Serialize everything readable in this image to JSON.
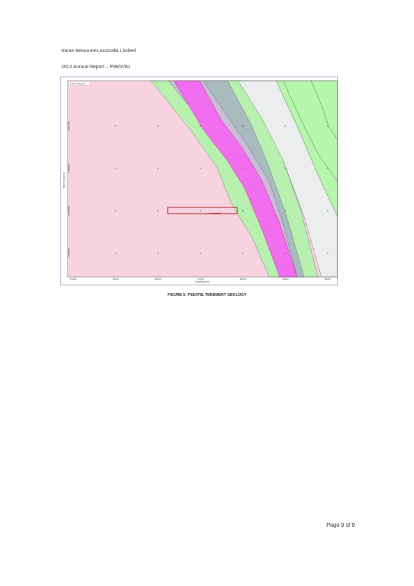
{
  "header": {
    "company": "Stone Resources Australia Limited",
    "report": "2012 Annual Report – P38/3781"
  },
  "figure": {
    "caption": "FIGURE 5:  P38/3781 TENEMENT GEOLOGY",
    "map_label": "p38_3781_dev",
    "x_axis_label": "Easting (m)",
    "y_axis_label": "Northing (m)",
    "x_ticks": [
      "34000",
      "35000",
      "36000",
      "37000",
      "38000",
      "39000",
      "40000"
    ],
    "y_ticks": [
      "6781000",
      "6780000",
      "6779000",
      "6778000"
    ],
    "colors": {
      "granite_pink": "#f7d4df",
      "pale_green": "#b8f0b0",
      "lavender": "#c8bcd8",
      "magenta": "#f26ef0",
      "slate": "#a8bcc0",
      "grey_white": "#eceeee",
      "bright_green": "#b6f7ad",
      "tenement_outline": "#a01818"
    }
  },
  "footer": {
    "page": "Page 9 of 9"
  }
}
